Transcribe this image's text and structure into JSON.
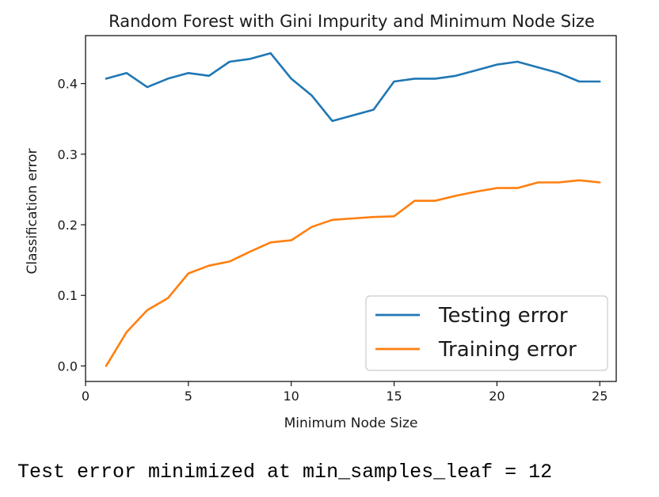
{
  "chart_data": {
    "type": "line",
    "title": "Random Forest with Gini Impurity and Minimum Node Size",
    "xlabel": "Minimum Node Size",
    "ylabel": "Classification error",
    "xlim": [
      0,
      25.8
    ],
    "ylim": [
      -0.022,
      0.468
    ],
    "xticks": [
      0,
      5,
      10,
      15,
      20,
      25
    ],
    "yticks": [
      0.0,
      0.1,
      0.2,
      0.3,
      0.4
    ],
    "x": [
      1,
      2,
      3,
      4,
      5,
      6,
      7,
      8,
      9,
      10,
      11,
      12,
      13,
      14,
      15,
      16,
      17,
      18,
      19,
      20,
      21,
      22,
      23,
      24,
      25
    ],
    "series": [
      {
        "name": "Testing error",
        "color": "#1f77b4",
        "values": [
          0.407,
          0.415,
          0.395,
          0.407,
          0.415,
          0.411,
          0.431,
          0.435,
          0.443,
          0.407,
          0.383,
          0.347,
          0.355,
          0.363,
          0.403,
          0.407,
          0.407,
          0.411,
          0.419,
          0.427,
          0.431,
          0.423,
          0.415,
          0.403,
          0.403
        ]
      },
      {
        "name": "Training error",
        "color": "#ff7f0e",
        "values": [
          0.0,
          0.048,
          0.079,
          0.096,
          0.131,
          0.142,
          0.148,
          0.162,
          0.175,
          0.178,
          0.197,
          0.207,
          0.209,
          0.211,
          0.212,
          0.234,
          0.234,
          0.241,
          0.247,
          0.252,
          0.252,
          0.26,
          0.26,
          0.263,
          0.26
        ]
      }
    ],
    "legend": "lower-right",
    "grid": false
  },
  "output_text": "Test error minimized at min_samples_leaf = 12"
}
